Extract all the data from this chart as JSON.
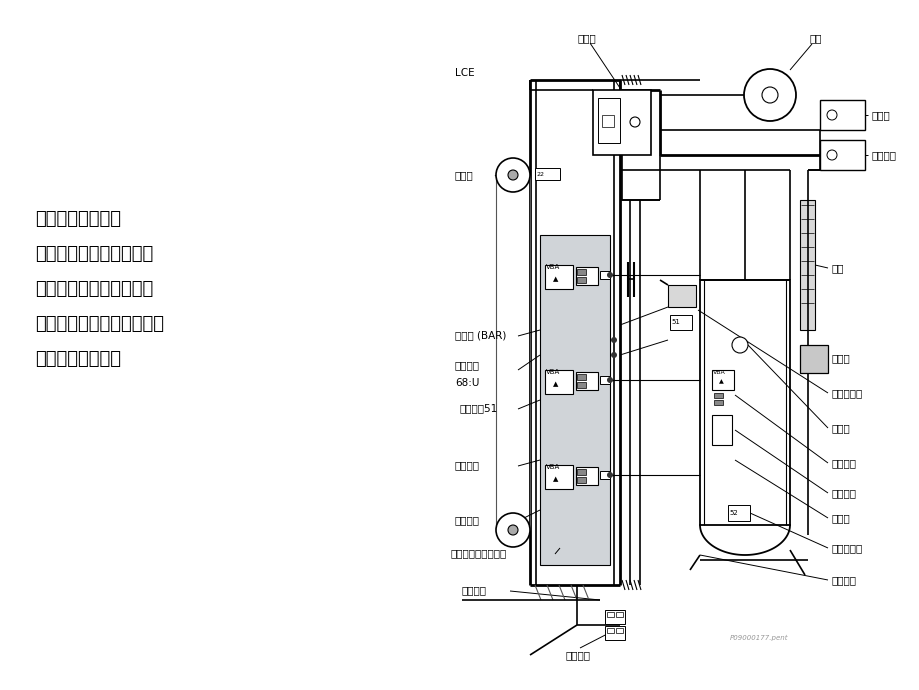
{
  "bg_color": "#ffffff",
  "text_color": "#000000",
  "line_color": "#000000",
  "gray_fill": "#c8c8c8",
  "light_gray": "#d8d8d8",
  "panel_gray": "#d0d4d8",
  "left_text": {
    "line1": "一、主要部件分布",
    "line2": "控制器管理所有的电梯组",
    "line3": "件之间的通信，比如轿厢",
    "line4": "电气设备，井道电气设备，",
    "line5": "电机和驱动系统。"
  },
  "watermark": "P09000177.pent"
}
